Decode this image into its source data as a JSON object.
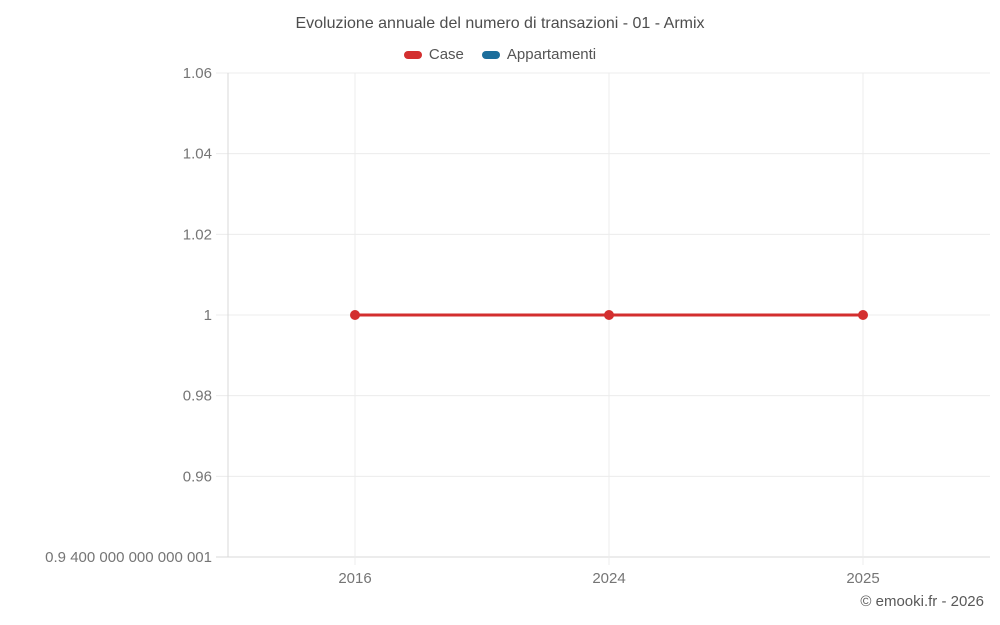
{
  "chart_data": {
    "type": "line",
    "title": "Evoluzione annuale del numero di transazioni - 01 - Armix",
    "categories": [
      "2016",
      "2024",
      "2025"
    ],
    "series": [
      {
        "name": "Case",
        "color": "#d32f2f",
        "values": [
          1,
          1,
          1
        ]
      },
      {
        "name": "Appartamenti",
        "color": "#1c6e9c",
        "values": [
          null,
          null,
          null
        ]
      }
    ],
    "y_axis": {
      "min": 0.94,
      "max": 1.06,
      "ticks": [
        {
          "value": 1.06,
          "label": "1.06"
        },
        {
          "value": 1.04,
          "label": "1.04"
        },
        {
          "value": 1.02,
          "label": "1.02"
        },
        {
          "value": 1.0,
          "label": "1"
        },
        {
          "value": 0.98,
          "label": "0.98"
        },
        {
          "value": 0.96,
          "label": "0.96"
        },
        {
          "value": 0.94,
          "label": "0.9 400 000 000 000 001"
        }
      ]
    },
    "legend_position": "top",
    "grid": true,
    "xlabel": "",
    "ylabel": ""
  },
  "colors": {
    "series_case": "#d32f2f",
    "series_appartamenti": "#1c6e9c",
    "gridline": "#ececec",
    "axis_line": "#d9d9d9",
    "tick_text": "#757575",
    "title_text": "#4d4d4d",
    "background": "#ffffff"
  },
  "footer": {
    "copyright": "© emooki.fr - 2026"
  }
}
